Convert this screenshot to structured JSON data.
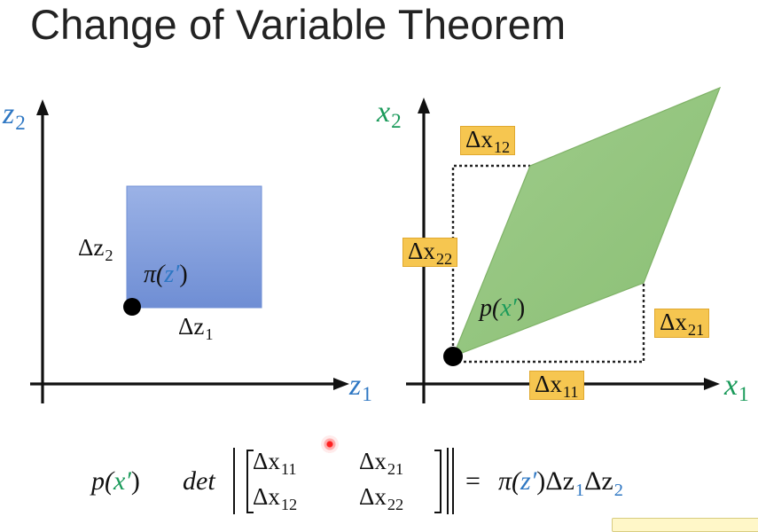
{
  "slide": {
    "title": "Change of Variable Theorem"
  },
  "left_plot": {
    "axis_x": {
      "sym": "z",
      "sub": "1"
    },
    "axis_y": {
      "sym": "z",
      "sub": "2"
    },
    "delta_z1": {
      "sym": "Δz",
      "sub": "1"
    },
    "delta_z2": {
      "sym": "Δz",
      "sub": "2"
    },
    "density": {
      "fn": "π(",
      "arg": "z′",
      "close": ")"
    },
    "region_color": "#7f9bd9"
  },
  "right_plot": {
    "axis_x": {
      "sym": "x",
      "sub": "1"
    },
    "axis_y": {
      "sym": "x",
      "sub": "2"
    },
    "tags": {
      "dx11": {
        "sym": "Δx",
        "sub": "11"
      },
      "dx12": {
        "sym": "Δx",
        "sub": "12"
      },
      "dx21": {
        "sym": "Δx",
        "sub": "21"
      },
      "dx22": {
        "sym": "Δx",
        "sub": "22"
      }
    },
    "density": {
      "fn": "p(",
      "arg": "x′",
      "close": ")"
    },
    "region_color": "#94c47f",
    "tag_color": "#f6c650"
  },
  "formula": {
    "lhs_fn": "p(",
    "lhs_arg": "x′",
    "lhs_close": ")",
    "det": "det",
    "m11": {
      "sym": "Δx",
      "sub": "11"
    },
    "m12": {
      "sym": "Δx",
      "sub": "21"
    },
    "m21": {
      "sym": "Δx",
      "sub": "12"
    },
    "m22": {
      "sym": "Δx",
      "sub": "22"
    },
    "equals": "=",
    "rhs_fn": "π(",
    "rhs_arg": "z′",
    "rhs_close": ")",
    "rhs_dz1": {
      "sym": "Δz",
      "sub": "1"
    },
    "rhs_dz2": {
      "sym": "Δz",
      "sub": "2"
    }
  },
  "colors": {
    "z_blue": "#2e77c3",
    "x_green": "#1a9a5a"
  }
}
